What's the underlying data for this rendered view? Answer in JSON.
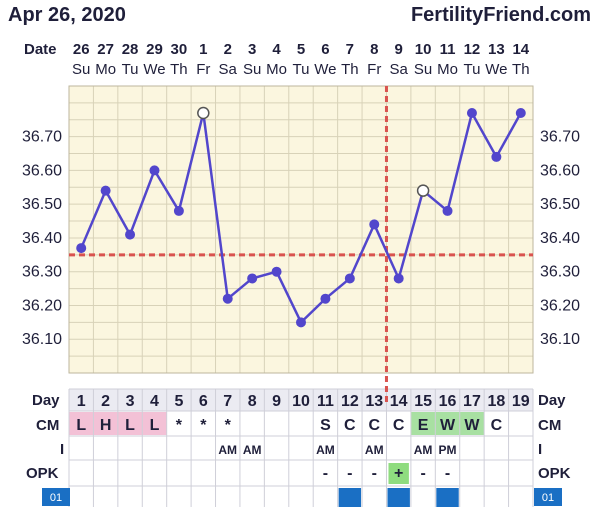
{
  "header": {
    "date": "Apr 26, 2020",
    "site": "FertilityFriend.com"
  },
  "row_labels": {
    "date": "Date",
    "day": "Day",
    "cm": "CM",
    "intercourse": "I",
    "opk": "OPK"
  },
  "dates": [
    "26",
    "27",
    "28",
    "29",
    "30",
    "1",
    "2",
    "3",
    "4",
    "5",
    "6",
    "7",
    "8",
    "9",
    "10",
    "11",
    "12",
    "13",
    "14"
  ],
  "weekdays": [
    "Su",
    "Mo",
    "Tu",
    "We",
    "Th",
    "Fr",
    "Sa",
    "Su",
    "Mo",
    "Tu",
    "We",
    "Th",
    "Fr",
    "Sa",
    "Su",
    "Mo",
    "Tu",
    "We",
    "Th"
  ],
  "cycle_days": [
    "1",
    "2",
    "3",
    "4",
    "5",
    "6",
    "7",
    "8",
    "9",
    "10",
    "11",
    "12",
    "13",
    "14",
    "15",
    "16",
    "17",
    "18",
    "19"
  ],
  "cm": [
    "L",
    "H",
    "L",
    "L",
    "*",
    "*",
    "*",
    "",
    "",
    "",
    "S",
    "C",
    "C",
    "C",
    "E",
    "W",
    "W",
    "C",
    ""
  ],
  "intercourse": [
    "",
    "",
    "",
    "",
    "",
    "",
    "AM",
    "AM",
    "",
    "",
    "AM",
    "",
    "AM",
    "",
    "AM",
    "PM",
    "",
    "",
    ""
  ],
  "opk": [
    "",
    "",
    "",
    "",
    "",
    "",
    "",
    "",
    "",
    "",
    "-",
    "-",
    "-",
    "+",
    "-",
    "-",
    "",
    "",
    ""
  ],
  "cycle_marker": "01",
  "colors": {
    "plot_bg": "#fbf6df",
    "grid": "#d8d2b8",
    "line": "#5246cc",
    "coverline": "#d9534f",
    "menstruation_cell": "#f3c1d6",
    "fertile_cell": "#a8e0a2",
    "opk_positive": "#8fdc7f",
    "stripe_blue": "#1a6fc4"
  },
  "chart_data": {
    "type": "line",
    "title": "",
    "xlabel": "",
    "ylabel": "",
    "ylim": [
      36.0,
      36.85
    ],
    "y_ticks": [
      "36.10",
      "36.20",
      "36.30",
      "36.40",
      "36.50",
      "36.60",
      "36.70"
    ],
    "categories": [
      "1",
      "2",
      "3",
      "4",
      "5",
      "6",
      "7",
      "8",
      "9",
      "10",
      "11",
      "12",
      "13",
      "14",
      "15",
      "16",
      "17",
      "18",
      "19"
    ],
    "series": [
      {
        "values": [
          36.37,
          36.54,
          36.41,
          36.6,
          36.48,
          36.77,
          36.22,
          36.28,
          36.3,
          36.15,
          36.22,
          36.28,
          36.44,
          36.28,
          36.54,
          36.48,
          36.77,
          36.64,
          36.77
        ],
        "open_points": [
          6,
          15
        ]
      }
    ],
    "coverline": 36.35,
    "ovulation_day": 14,
    "grid": true
  }
}
